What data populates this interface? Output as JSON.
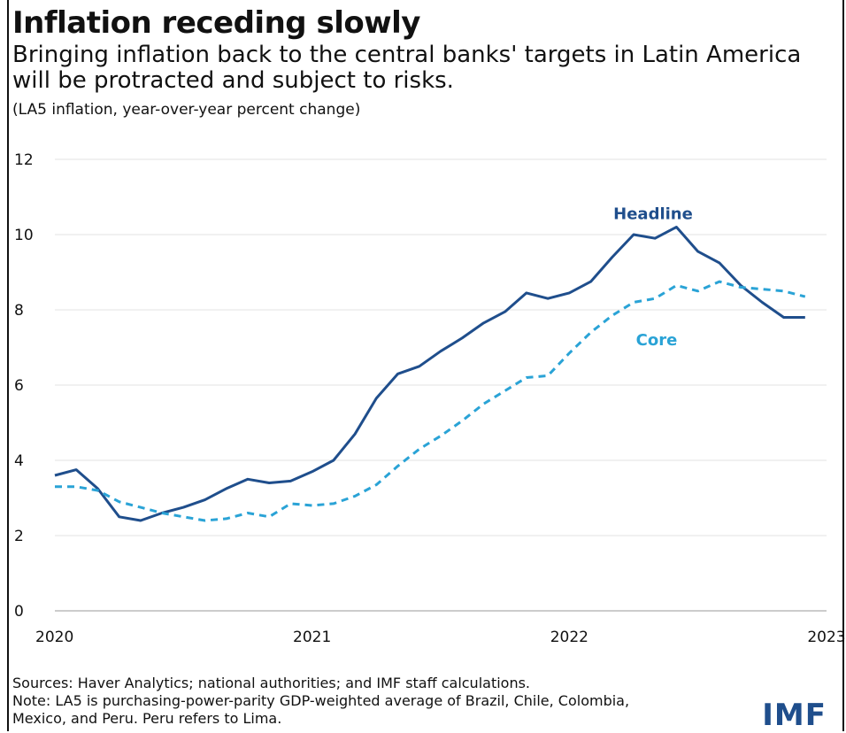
{
  "header": {
    "title": "Inflation receding slowly",
    "subtitle": "Bringing inflation back to the central banks' targets in Latin America will be protracted and subject to risks.",
    "units": "(LA5 inflation, year-over-year percent change)"
  },
  "footer": {
    "sources": "Sources: Haver Analytics; national authorities; and IMF staff calculations.",
    "note": "Note: LA5 is purchasing-power-parity GDP-weighted average of Brazil, Chile, Colombia, Mexico, and Peru. Peru refers to Lima.",
    "logo": "IMF"
  },
  "colors": {
    "headline": "#1f4e8c",
    "core": "#2aa3d6",
    "grid": "#e3e3e3"
  },
  "chart_data": {
    "type": "line",
    "xlim": [
      "2020-01",
      "2023-01"
    ],
    "ylim": [
      0,
      12
    ],
    "yticks": [
      0,
      2,
      4,
      6,
      8,
      10,
      12
    ],
    "xticks": [
      "2020",
      "2021",
      "2022",
      "2023"
    ],
    "grid": true,
    "legend": "inline labels",
    "x": [
      "2020-01",
      "2020-02",
      "2020-03",
      "2020-04",
      "2020-05",
      "2020-06",
      "2020-07",
      "2020-08",
      "2020-09",
      "2020-10",
      "2020-11",
      "2020-12",
      "2021-01",
      "2021-02",
      "2021-03",
      "2021-04",
      "2021-05",
      "2021-06",
      "2021-07",
      "2021-08",
      "2021-09",
      "2021-10",
      "2021-11",
      "2021-12",
      "2022-01",
      "2022-02",
      "2022-03",
      "2022-04",
      "2022-05",
      "2022-06",
      "2022-07",
      "2022-08",
      "2022-09",
      "2022-10",
      "2022-11",
      "2022-12"
    ],
    "series": [
      {
        "name": "Headline",
        "style": "solid",
        "values": [
          3.6,
          3.75,
          3.25,
          2.5,
          2.4,
          2.6,
          2.75,
          2.95,
          3.25,
          3.5,
          3.4,
          3.45,
          3.7,
          4.0,
          4.7,
          5.65,
          6.3,
          6.5,
          6.9,
          7.25,
          7.65,
          7.95,
          8.45,
          8.3,
          8.45,
          8.75,
          9.4,
          10.0,
          9.9,
          10.2,
          9.55,
          9.25,
          8.65,
          8.2,
          7.8,
          7.8
        ]
      },
      {
        "name": "Core",
        "style": "dashed",
        "values": [
          3.3,
          3.3,
          3.2,
          2.9,
          2.75,
          2.6,
          2.5,
          2.4,
          2.45,
          2.6,
          2.5,
          2.85,
          2.8,
          2.85,
          3.05,
          3.35,
          3.85,
          4.3,
          4.65,
          5.05,
          5.5,
          5.85,
          6.2,
          6.25,
          6.85,
          7.4,
          7.85,
          8.2,
          8.3,
          8.65,
          8.5,
          8.75,
          8.6,
          8.55,
          8.5,
          8.35
        ]
      }
    ]
  }
}
